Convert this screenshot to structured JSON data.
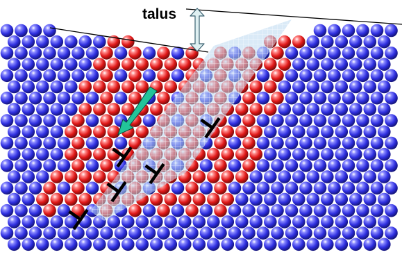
{
  "figure": {
    "label": "talus",
    "colors": {
      "atom_blue": "#2f2fe0",
      "atom_red": "#e01818",
      "highlight": "#bcd8f0",
      "arrow_fill": "#22c49a",
      "bracket_fill": "#dff0f2",
      "bracket_stroke": "#3a6070",
      "dislocation": "#000000"
    }
  }
}
